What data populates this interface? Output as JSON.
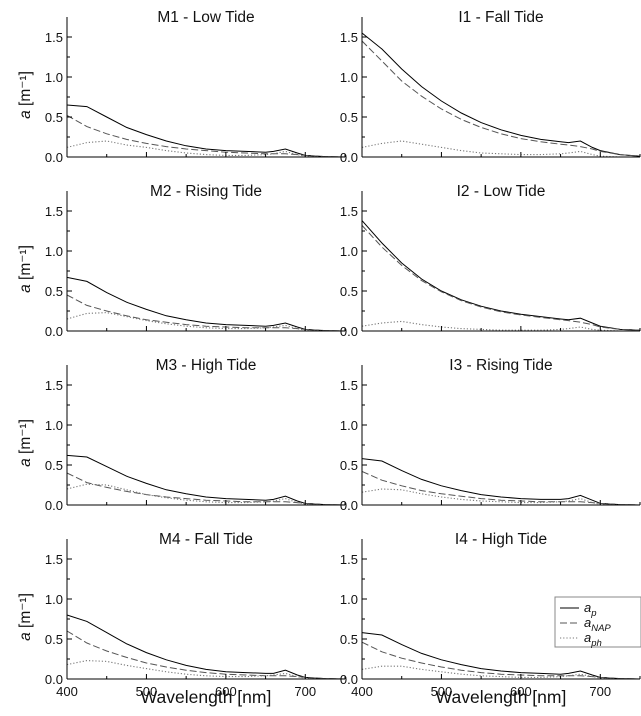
{
  "figure": {
    "x_label": "Wavelength [nm]",
    "y_label_main": "a",
    "y_label_unit": " [m⁻¹]"
  },
  "legend": [
    {
      "key": "ap",
      "base": "a",
      "sub": "p",
      "dash": "solid",
      "color": "#000000"
    },
    {
      "key": "anap",
      "base": "a",
      "sub": "NAP",
      "dash": "dashed",
      "color": "#555555"
    },
    {
      "key": "aph",
      "base": "a",
      "sub": "ph",
      "dash": "dotted",
      "color": "#777777"
    }
  ],
  "chart_data": [
    {
      "type": "line",
      "title": "M1 - Low Tide",
      "xlim": [
        400,
        750
      ],
      "ylim": [
        0,
        1.75
      ],
      "x_ticks": [
        400,
        500,
        600,
        700
      ],
      "y_ticks": [
        0.0,
        0.5,
        1.0,
        1.5
      ],
      "x": [
        400,
        425,
        450,
        475,
        500,
        525,
        550,
        575,
        600,
        625,
        650,
        660,
        675,
        690,
        700,
        725,
        750
      ],
      "series": [
        {
          "name": "a_p",
          "values": [
            0.65,
            0.63,
            0.5,
            0.37,
            0.28,
            0.2,
            0.14,
            0.1,
            0.08,
            0.07,
            0.06,
            0.07,
            0.1,
            0.05,
            0.02,
            0.005,
            0.0
          ]
        },
        {
          "name": "a_NAP",
          "values": [
            0.52,
            0.38,
            0.29,
            0.22,
            0.17,
            0.13,
            0.1,
            0.08,
            0.06,
            0.05,
            0.04,
            0.04,
            0.04,
            0.03,
            0.02,
            0.005,
            0.0
          ]
        },
        {
          "name": "a_ph",
          "values": [
            0.12,
            0.18,
            0.2,
            0.15,
            0.12,
            0.08,
            0.05,
            0.03,
            0.02,
            0.02,
            0.03,
            0.04,
            0.07,
            0.03,
            0.01,
            0.0,
            0.0
          ]
        }
      ]
    },
    {
      "type": "line",
      "title": "I1 - Fall Tide",
      "xlim": [
        400,
        750
      ],
      "ylim": [
        0,
        1.75
      ],
      "x_ticks": [
        400,
        500,
        600,
        700
      ],
      "y_ticks": [
        0.0,
        0.5,
        1.0,
        1.5
      ],
      "x": [
        400,
        425,
        450,
        475,
        500,
        525,
        550,
        575,
        600,
        625,
        650,
        660,
        675,
        690,
        700,
        725,
        750
      ],
      "series": [
        {
          "name": "a_p",
          "values": [
            1.55,
            1.35,
            1.1,
            0.88,
            0.7,
            0.55,
            0.43,
            0.34,
            0.27,
            0.22,
            0.19,
            0.18,
            0.2,
            0.12,
            0.08,
            0.03,
            0.01
          ]
        },
        {
          "name": "a_NAP",
          "values": [
            1.45,
            1.2,
            0.95,
            0.76,
            0.6,
            0.47,
            0.37,
            0.29,
            0.23,
            0.19,
            0.16,
            0.15,
            0.13,
            0.1,
            0.07,
            0.03,
            0.01
          ]
        },
        {
          "name": "a_ph",
          "values": [
            0.12,
            0.17,
            0.2,
            0.16,
            0.12,
            0.08,
            0.05,
            0.04,
            0.03,
            0.03,
            0.04,
            0.05,
            0.07,
            0.03,
            0.01,
            0.0,
            0.0
          ]
        }
      ]
    },
    {
      "type": "line",
      "title": "M2 - Rising Tide",
      "xlim": [
        400,
        750
      ],
      "ylim": [
        0,
        1.75
      ],
      "x_ticks": [
        400,
        500,
        600,
        700
      ],
      "y_ticks": [
        0.0,
        0.5,
        1.0,
        1.5
      ],
      "x": [
        400,
        425,
        450,
        475,
        500,
        525,
        550,
        575,
        600,
        625,
        650,
        660,
        675,
        690,
        700,
        725,
        750
      ],
      "series": [
        {
          "name": "a_p",
          "values": [
            0.67,
            0.62,
            0.48,
            0.36,
            0.27,
            0.19,
            0.14,
            0.1,
            0.08,
            0.07,
            0.06,
            0.07,
            0.1,
            0.05,
            0.02,
            0.005,
            0.0
          ]
        },
        {
          "name": "a_NAP",
          "values": [
            0.45,
            0.32,
            0.25,
            0.19,
            0.14,
            0.11,
            0.08,
            0.06,
            0.05,
            0.04,
            0.04,
            0.04,
            0.04,
            0.03,
            0.02,
            0.005,
            0.0
          ]
        },
        {
          "name": "a_ph",
          "values": [
            0.15,
            0.22,
            0.23,
            0.18,
            0.13,
            0.09,
            0.06,
            0.04,
            0.03,
            0.03,
            0.04,
            0.05,
            0.07,
            0.03,
            0.01,
            0.0,
            0.0
          ]
        }
      ]
    },
    {
      "type": "line",
      "title": "I2 - Low Tide",
      "xlim": [
        400,
        750
      ],
      "ylim": [
        0,
        1.75
      ],
      "x_ticks": [
        400,
        500,
        600,
        700
      ],
      "y_ticks": [
        0.0,
        0.5,
        1.0,
        1.5
      ],
      "x": [
        400,
        425,
        450,
        475,
        500,
        525,
        550,
        575,
        600,
        625,
        650,
        660,
        675,
        690,
        700,
        725,
        750
      ],
      "series": [
        {
          "name": "a_p",
          "values": [
            1.38,
            1.1,
            0.85,
            0.65,
            0.5,
            0.39,
            0.31,
            0.25,
            0.21,
            0.18,
            0.15,
            0.14,
            0.16,
            0.1,
            0.06,
            0.02,
            0.01
          ]
        },
        {
          "name": "a_NAP",
          "values": [
            1.32,
            1.05,
            0.82,
            0.63,
            0.49,
            0.38,
            0.3,
            0.24,
            0.2,
            0.17,
            0.14,
            0.13,
            0.11,
            0.08,
            0.05,
            0.02,
            0.01
          ]
        },
        {
          "name": "a_ph",
          "values": [
            0.06,
            0.1,
            0.12,
            0.08,
            0.05,
            0.03,
            0.02,
            0.01,
            0.01,
            0.01,
            0.02,
            0.03,
            0.05,
            0.02,
            0.01,
            0.0,
            0.0
          ]
        }
      ]
    },
    {
      "type": "line",
      "title": "M3 - High Tide",
      "xlim": [
        400,
        750
      ],
      "ylim": [
        0,
        1.75
      ],
      "x_ticks": [
        400,
        500,
        600,
        700
      ],
      "y_ticks": [
        0.0,
        0.5,
        1.0,
        1.5
      ],
      "x": [
        400,
        425,
        450,
        475,
        500,
        525,
        550,
        575,
        600,
        625,
        650,
        660,
        675,
        690,
        700,
        725,
        750
      ],
      "series": [
        {
          "name": "a_p",
          "values": [
            0.62,
            0.6,
            0.48,
            0.36,
            0.27,
            0.19,
            0.14,
            0.1,
            0.08,
            0.07,
            0.06,
            0.07,
            0.11,
            0.05,
            0.02,
            0.005,
            0.0
          ]
        },
        {
          "name": "a_NAP",
          "values": [
            0.4,
            0.28,
            0.22,
            0.17,
            0.13,
            0.1,
            0.08,
            0.06,
            0.05,
            0.04,
            0.04,
            0.04,
            0.04,
            0.03,
            0.02,
            0.005,
            0.0
          ]
        },
        {
          "name": "a_ph",
          "values": [
            0.2,
            0.26,
            0.25,
            0.19,
            0.13,
            0.09,
            0.06,
            0.04,
            0.03,
            0.03,
            0.04,
            0.05,
            0.08,
            0.03,
            0.01,
            0.0,
            0.0
          ]
        }
      ]
    },
    {
      "type": "line",
      "title": "I3 - Rising Tide",
      "xlim": [
        400,
        750
      ],
      "ylim": [
        0,
        1.75
      ],
      "x_ticks": [
        400,
        500,
        600,
        700
      ],
      "y_ticks": [
        0.0,
        0.5,
        1.0,
        1.5
      ],
      "x": [
        400,
        425,
        450,
        475,
        500,
        525,
        550,
        575,
        600,
        625,
        650,
        660,
        675,
        690,
        700,
        725,
        750
      ],
      "series": [
        {
          "name": "a_p",
          "values": [
            0.58,
            0.55,
            0.43,
            0.32,
            0.24,
            0.18,
            0.13,
            0.1,
            0.08,
            0.07,
            0.07,
            0.08,
            0.12,
            0.06,
            0.02,
            0.005,
            0.0
          ]
        },
        {
          "name": "a_NAP",
          "values": [
            0.42,
            0.31,
            0.24,
            0.18,
            0.14,
            0.11,
            0.08,
            0.06,
            0.05,
            0.04,
            0.04,
            0.04,
            0.04,
            0.03,
            0.02,
            0.005,
            0.0
          ]
        },
        {
          "name": "a_ph",
          "values": [
            0.16,
            0.2,
            0.19,
            0.14,
            0.1,
            0.07,
            0.05,
            0.04,
            0.03,
            0.03,
            0.04,
            0.05,
            0.08,
            0.03,
            0.01,
            0.0,
            0.0
          ]
        }
      ]
    },
    {
      "type": "line",
      "title": "M4 - Fall Tide",
      "xlim": [
        400,
        750
      ],
      "ylim": [
        0,
        1.75
      ],
      "x_ticks": [
        400,
        500,
        600,
        700
      ],
      "y_ticks": [
        0.0,
        0.5,
        1.0,
        1.5
      ],
      "x": [
        400,
        425,
        450,
        475,
        500,
        525,
        550,
        575,
        600,
        625,
        650,
        660,
        675,
        690,
        700,
        725,
        750
      ],
      "series": [
        {
          "name": "a_p",
          "values": [
            0.8,
            0.72,
            0.58,
            0.44,
            0.33,
            0.24,
            0.17,
            0.12,
            0.09,
            0.08,
            0.07,
            0.07,
            0.11,
            0.05,
            0.02,
            0.005,
            0.0
          ]
        },
        {
          "name": "a_NAP",
          "values": [
            0.6,
            0.45,
            0.35,
            0.27,
            0.2,
            0.15,
            0.11,
            0.08,
            0.06,
            0.05,
            0.04,
            0.04,
            0.04,
            0.03,
            0.02,
            0.005,
            0.0
          ]
        },
        {
          "name": "a_ph",
          "values": [
            0.18,
            0.23,
            0.22,
            0.17,
            0.13,
            0.09,
            0.06,
            0.04,
            0.03,
            0.03,
            0.04,
            0.05,
            0.07,
            0.03,
            0.01,
            0.0,
            0.0
          ]
        }
      ]
    },
    {
      "type": "line",
      "title": "I4 - High Tide",
      "xlim": [
        400,
        750
      ],
      "ylim": [
        0,
        1.75
      ],
      "x_ticks": [
        400,
        500,
        600,
        700
      ],
      "y_ticks": [
        0.0,
        0.5,
        1.0,
        1.5
      ],
      "x": [
        400,
        425,
        450,
        475,
        500,
        525,
        550,
        575,
        600,
        625,
        650,
        660,
        675,
        690,
        700,
        725,
        750
      ],
      "series": [
        {
          "name": "a_p",
          "values": [
            0.58,
            0.55,
            0.43,
            0.32,
            0.24,
            0.18,
            0.13,
            0.1,
            0.08,
            0.07,
            0.06,
            0.07,
            0.1,
            0.05,
            0.02,
            0.005,
            0.0
          ]
        },
        {
          "name": "a_NAP",
          "values": [
            0.46,
            0.34,
            0.26,
            0.2,
            0.15,
            0.11,
            0.08,
            0.06,
            0.05,
            0.04,
            0.04,
            0.04,
            0.04,
            0.03,
            0.02,
            0.005,
            0.0
          ]
        },
        {
          "name": "a_ph",
          "values": [
            0.12,
            0.16,
            0.16,
            0.12,
            0.09,
            0.06,
            0.04,
            0.03,
            0.02,
            0.02,
            0.03,
            0.04,
            0.06,
            0.03,
            0.01,
            0.0,
            0.0
          ]
        }
      ]
    }
  ]
}
